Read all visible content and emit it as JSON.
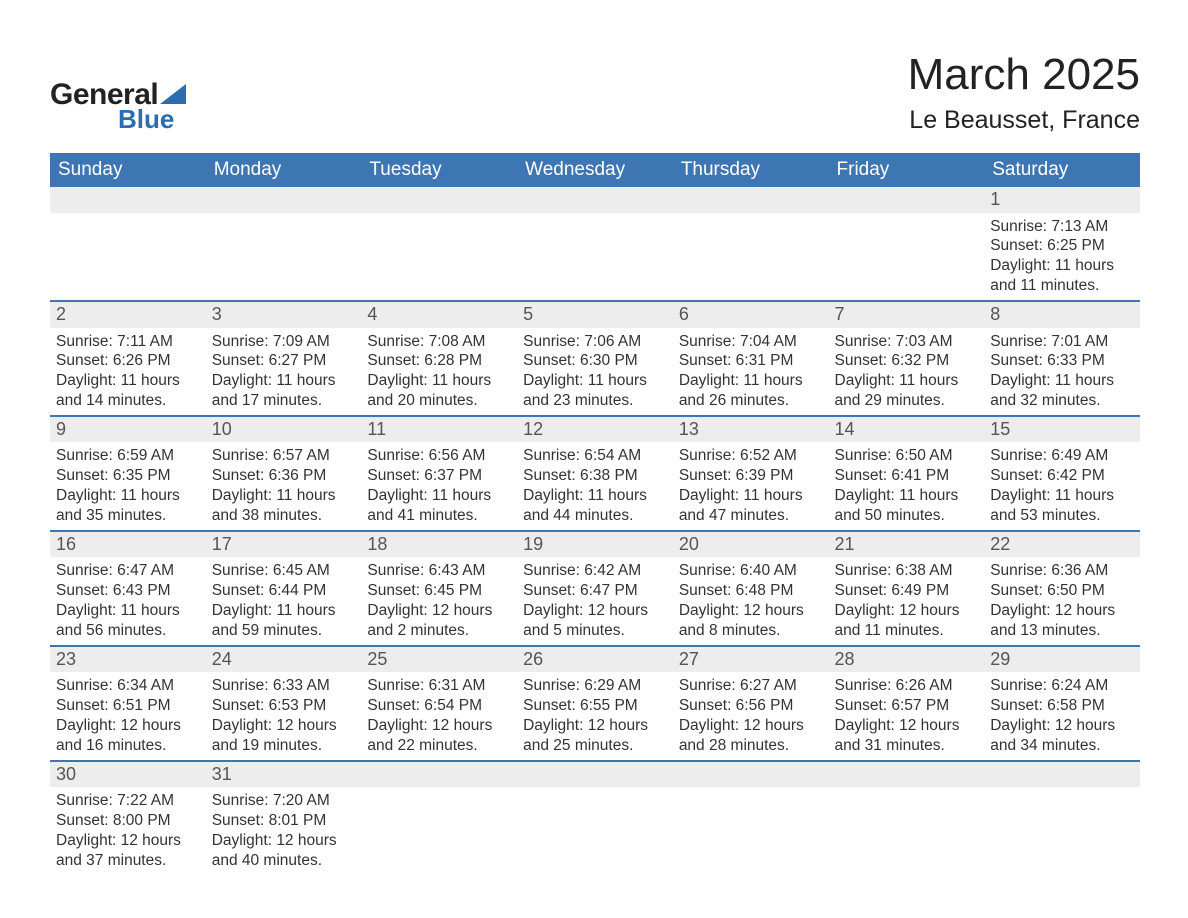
{
  "logo": {
    "word1": "General",
    "word2": "Blue"
  },
  "title": "March 2025",
  "location": "Le Beausset, France",
  "colors": {
    "header_bg": "#3d76b3",
    "header_text": "#ffffff",
    "row_divider": "#3d76b3",
    "daynum_bg": "#ededed",
    "daynum_text": "#555555",
    "body_text": "#333333",
    "logo_accent": "#2a6db0",
    "page_bg": "#ffffff"
  },
  "typography": {
    "title_fontsize": 44,
    "location_fontsize": 25,
    "header_fontsize": 19,
    "daynum_fontsize": 18,
    "body_fontsize": 15.5,
    "font_family": "Arial"
  },
  "layout": {
    "columns": 7,
    "weeks": 6,
    "start_day": "Sunday"
  },
  "day_headers": [
    "Sunday",
    "Monday",
    "Tuesday",
    "Wednesday",
    "Thursday",
    "Friday",
    "Saturday"
  ],
  "weeks": [
    [
      {
        "empty": true
      },
      {
        "empty": true
      },
      {
        "empty": true
      },
      {
        "empty": true
      },
      {
        "empty": true
      },
      {
        "empty": true
      },
      {
        "day": "1",
        "sunrise": "Sunrise: 7:13 AM",
        "sunset": "Sunset: 6:25 PM",
        "daylight1": "Daylight: 11 hours",
        "daylight2": "and 11 minutes."
      }
    ],
    [
      {
        "day": "2",
        "sunrise": "Sunrise: 7:11 AM",
        "sunset": "Sunset: 6:26 PM",
        "daylight1": "Daylight: 11 hours",
        "daylight2": "and 14 minutes."
      },
      {
        "day": "3",
        "sunrise": "Sunrise: 7:09 AM",
        "sunset": "Sunset: 6:27 PM",
        "daylight1": "Daylight: 11 hours",
        "daylight2": "and 17 minutes."
      },
      {
        "day": "4",
        "sunrise": "Sunrise: 7:08 AM",
        "sunset": "Sunset: 6:28 PM",
        "daylight1": "Daylight: 11 hours",
        "daylight2": "and 20 minutes."
      },
      {
        "day": "5",
        "sunrise": "Sunrise: 7:06 AM",
        "sunset": "Sunset: 6:30 PM",
        "daylight1": "Daylight: 11 hours",
        "daylight2": "and 23 minutes."
      },
      {
        "day": "6",
        "sunrise": "Sunrise: 7:04 AM",
        "sunset": "Sunset: 6:31 PM",
        "daylight1": "Daylight: 11 hours",
        "daylight2": "and 26 minutes."
      },
      {
        "day": "7",
        "sunrise": "Sunrise: 7:03 AM",
        "sunset": "Sunset: 6:32 PM",
        "daylight1": "Daylight: 11 hours",
        "daylight2": "and 29 minutes."
      },
      {
        "day": "8",
        "sunrise": "Sunrise: 7:01 AM",
        "sunset": "Sunset: 6:33 PM",
        "daylight1": "Daylight: 11 hours",
        "daylight2": "and 32 minutes."
      }
    ],
    [
      {
        "day": "9",
        "sunrise": "Sunrise: 6:59 AM",
        "sunset": "Sunset: 6:35 PM",
        "daylight1": "Daylight: 11 hours",
        "daylight2": "and 35 minutes."
      },
      {
        "day": "10",
        "sunrise": "Sunrise: 6:57 AM",
        "sunset": "Sunset: 6:36 PM",
        "daylight1": "Daylight: 11 hours",
        "daylight2": "and 38 minutes."
      },
      {
        "day": "11",
        "sunrise": "Sunrise: 6:56 AM",
        "sunset": "Sunset: 6:37 PM",
        "daylight1": "Daylight: 11 hours",
        "daylight2": "and 41 minutes."
      },
      {
        "day": "12",
        "sunrise": "Sunrise: 6:54 AM",
        "sunset": "Sunset: 6:38 PM",
        "daylight1": "Daylight: 11 hours",
        "daylight2": "and 44 minutes."
      },
      {
        "day": "13",
        "sunrise": "Sunrise: 6:52 AM",
        "sunset": "Sunset: 6:39 PM",
        "daylight1": "Daylight: 11 hours",
        "daylight2": "and 47 minutes."
      },
      {
        "day": "14",
        "sunrise": "Sunrise: 6:50 AM",
        "sunset": "Sunset: 6:41 PM",
        "daylight1": "Daylight: 11 hours",
        "daylight2": "and 50 minutes."
      },
      {
        "day": "15",
        "sunrise": "Sunrise: 6:49 AM",
        "sunset": "Sunset: 6:42 PM",
        "daylight1": "Daylight: 11 hours",
        "daylight2": "and 53 minutes."
      }
    ],
    [
      {
        "day": "16",
        "sunrise": "Sunrise: 6:47 AM",
        "sunset": "Sunset: 6:43 PM",
        "daylight1": "Daylight: 11 hours",
        "daylight2": "and 56 minutes."
      },
      {
        "day": "17",
        "sunrise": "Sunrise: 6:45 AM",
        "sunset": "Sunset: 6:44 PM",
        "daylight1": "Daylight: 11 hours",
        "daylight2": "and 59 minutes."
      },
      {
        "day": "18",
        "sunrise": "Sunrise: 6:43 AM",
        "sunset": "Sunset: 6:45 PM",
        "daylight1": "Daylight: 12 hours",
        "daylight2": "and 2 minutes."
      },
      {
        "day": "19",
        "sunrise": "Sunrise: 6:42 AM",
        "sunset": "Sunset: 6:47 PM",
        "daylight1": "Daylight: 12 hours",
        "daylight2": "and 5 minutes."
      },
      {
        "day": "20",
        "sunrise": "Sunrise: 6:40 AM",
        "sunset": "Sunset: 6:48 PM",
        "daylight1": "Daylight: 12 hours",
        "daylight2": "and 8 minutes."
      },
      {
        "day": "21",
        "sunrise": "Sunrise: 6:38 AM",
        "sunset": "Sunset: 6:49 PM",
        "daylight1": "Daylight: 12 hours",
        "daylight2": "and 11 minutes."
      },
      {
        "day": "22",
        "sunrise": "Sunrise: 6:36 AM",
        "sunset": "Sunset: 6:50 PM",
        "daylight1": "Daylight: 12 hours",
        "daylight2": "and 13 minutes."
      }
    ],
    [
      {
        "day": "23",
        "sunrise": "Sunrise: 6:34 AM",
        "sunset": "Sunset: 6:51 PM",
        "daylight1": "Daylight: 12 hours",
        "daylight2": "and 16 minutes."
      },
      {
        "day": "24",
        "sunrise": "Sunrise: 6:33 AM",
        "sunset": "Sunset: 6:53 PM",
        "daylight1": "Daylight: 12 hours",
        "daylight2": "and 19 minutes."
      },
      {
        "day": "25",
        "sunrise": "Sunrise: 6:31 AM",
        "sunset": "Sunset: 6:54 PM",
        "daylight1": "Daylight: 12 hours",
        "daylight2": "and 22 minutes."
      },
      {
        "day": "26",
        "sunrise": "Sunrise: 6:29 AM",
        "sunset": "Sunset: 6:55 PM",
        "daylight1": "Daylight: 12 hours",
        "daylight2": "and 25 minutes."
      },
      {
        "day": "27",
        "sunrise": "Sunrise: 6:27 AM",
        "sunset": "Sunset: 6:56 PM",
        "daylight1": "Daylight: 12 hours",
        "daylight2": "and 28 minutes."
      },
      {
        "day": "28",
        "sunrise": "Sunrise: 6:26 AM",
        "sunset": "Sunset: 6:57 PM",
        "daylight1": "Daylight: 12 hours",
        "daylight2": "and 31 minutes."
      },
      {
        "day": "29",
        "sunrise": "Sunrise: 6:24 AM",
        "sunset": "Sunset: 6:58 PM",
        "daylight1": "Daylight: 12 hours",
        "daylight2": "and 34 minutes."
      }
    ],
    [
      {
        "day": "30",
        "sunrise": "Sunrise: 7:22 AM",
        "sunset": "Sunset: 8:00 PM",
        "daylight1": "Daylight: 12 hours",
        "daylight2": "and 37 minutes."
      },
      {
        "day": "31",
        "sunrise": "Sunrise: 7:20 AM",
        "sunset": "Sunset: 8:01 PM",
        "daylight1": "Daylight: 12 hours",
        "daylight2": "and 40 minutes."
      },
      {
        "empty": true
      },
      {
        "empty": true
      },
      {
        "empty": true
      },
      {
        "empty": true
      },
      {
        "empty": true
      }
    ]
  ]
}
